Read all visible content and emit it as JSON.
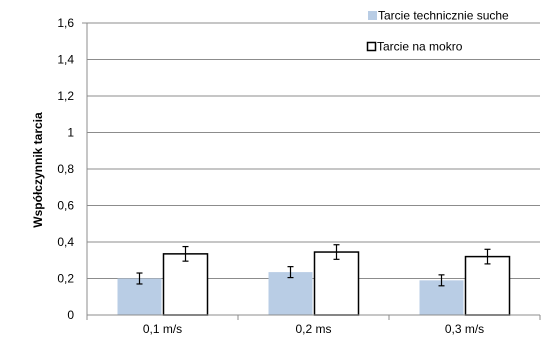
{
  "chart_data": {
    "type": "bar",
    "ylabel": "Współczynnik tarcia",
    "xlabel": "",
    "ylim": [
      0,
      1.6
    ],
    "yticks": [
      "0",
      "0,2",
      "0,4",
      "0,6",
      "0,8",
      "1",
      "1,2",
      "1,4",
      "1,6"
    ],
    "categories": [
      "0,1 m/s",
      "0,2 ms",
      "0,3 m/s"
    ],
    "grid": true,
    "legend_position": "top-right",
    "series": [
      {
        "name": "Tarcie technicznie suche",
        "values": [
          0.2,
          0.235,
          0.19
        ],
        "errors": [
          0.03,
          0.03,
          0.03
        ],
        "color": "#b9cde5",
        "style": "filled"
      },
      {
        "name": "Tarcie na mokro",
        "values": [
          0.335,
          0.345,
          0.32
        ],
        "errors": [
          0.04,
          0.04,
          0.04
        ],
        "color": "#ffffff",
        "style": "outlined"
      }
    ]
  }
}
